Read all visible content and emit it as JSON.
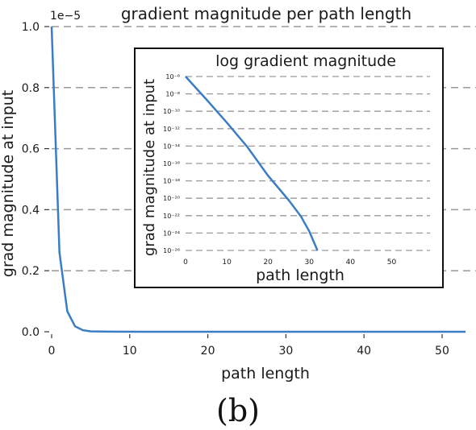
{
  "caption": "(b)",
  "chart_data": [
    {
      "type": "line",
      "title": "gradient magnitude per path length",
      "xlabel": "path length",
      "ylabel": "grad magnitude at input",
      "y_scale_label": "1e−5",
      "xlim": [
        0,
        53
      ],
      "ylim": [
        0,
        1.0
      ],
      "xticks": [
        "0",
        "10",
        "20",
        "30",
        "40",
        "50"
      ],
      "yticks": [
        "0.0",
        "0.2",
        "0.4",
        "0.6",
        "0.8",
        "1.0"
      ],
      "grid": "horizontal dashed",
      "line_color": "#3b7dc4",
      "series": [
        {
          "x": [
            0,
            1,
            2,
            3,
            4,
            5,
            8,
            12,
            20,
            30,
            40,
            50,
            53
          ],
          "y": [
            1.0,
            0.26,
            0.067,
            0.018,
            0.005,
            0.0013,
            0.0002,
            5e-05,
            0,
            0,
            0,
            0,
            0
          ]
        }
      ]
    },
    {
      "type": "line",
      "title": "log gradient magnitude",
      "xlabel": "path length",
      "ylabel": "grad magnitude at input",
      "y_scale": "log",
      "xlim": [
        0,
        55
      ],
      "ylim_exp": [
        -26,
        -6
      ],
      "xticks": [
        "0",
        "10",
        "20",
        "30",
        "40",
        "50"
      ],
      "yticks": [
        "10⁻⁶",
        "10⁻⁸",
        "10⁻¹⁰",
        "10⁻¹²",
        "10⁻¹⁴",
        "10⁻¹⁶",
        "10⁻¹⁸",
        "10⁻²⁰",
        "10⁻²²",
        "10⁻²⁴",
        "10⁻²⁶"
      ],
      "grid": "horizontal dashed",
      "line_color": "#3b7dc4",
      "series": [
        {
          "x": [
            0,
            5,
            10,
            15,
            20,
            25,
            28,
            30,
            32
          ],
          "y_log10": [
            -6,
            -8.6,
            -11.3,
            -14.1,
            -17.4,
            -20.2,
            -22.1,
            -23.8,
            -26
          ]
        }
      ]
    }
  ]
}
